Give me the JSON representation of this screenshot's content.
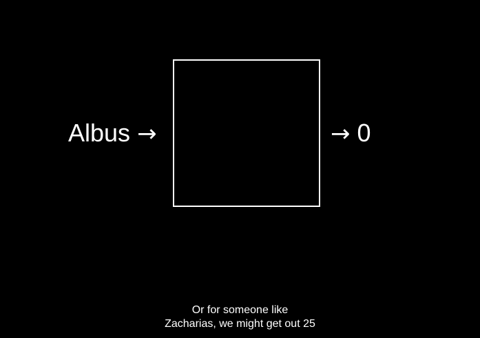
{
  "diagram": {
    "input_text": "Albus",
    "input_arrow": "→",
    "output_arrow": "→",
    "output_text": "0"
  },
  "caption": {
    "line1": "Or for someone like",
    "line2": "Zacharias, we might get out 25"
  },
  "colors": {
    "background": "#000000",
    "foreground": "#ffffff"
  }
}
